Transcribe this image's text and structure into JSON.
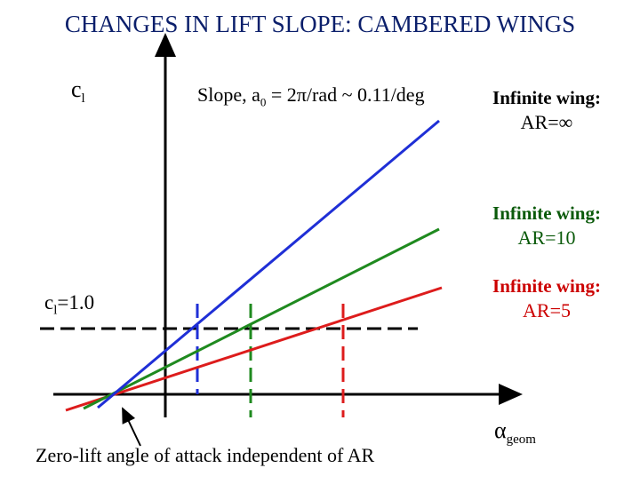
{
  "title": "CHANGES IN LIFT SLOPE: CAMBERED WINGS",
  "y_axis": {
    "symbol": "c",
    "subscript": "l"
  },
  "x_axis": {
    "symbol": "α",
    "subscript": "geom"
  },
  "slope_note": {
    "prefix": "Slope, a",
    "subscript": "0",
    "suffix": " = 2π/rad ~ 0.11/deg"
  },
  "reference_line": {
    "symbol": "c",
    "subscript": "l",
    "suffix": "=1.0"
  },
  "annotation": "Zero-lift angle of attack independent of AR",
  "lines": [
    {
      "title": "Infinite wing:",
      "ar": "AR=∞",
      "color": "#1f2fd6"
    },
    {
      "title": "Infinite wing:",
      "ar": "AR=10",
      "color": "#1f8a1f"
    },
    {
      "title": "Infinite wing:",
      "ar": "AR=5",
      "color": "#dd1c1c"
    }
  ],
  "colors": {
    "axis": "#000000",
    "title": "#0b1f6b",
    "reference": "#000000"
  }
}
